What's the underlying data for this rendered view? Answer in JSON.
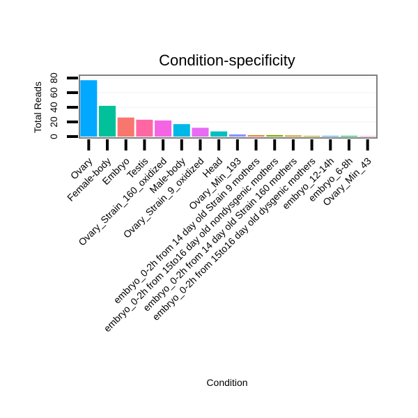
{
  "chart_data": {
    "type": "bar",
    "title": "Condition-specificity",
    "xlabel": "Condition",
    "ylabel": "Total Reads",
    "ylim": [
      0,
      80
    ],
    "yticks": [
      "0",
      "20",
      "40",
      "60",
      "80"
    ],
    "grid": true,
    "legend": "none",
    "categories": [
      "Ovary",
      "Female-body",
      "Embryo",
      "Testis",
      "Ovary_Strain_160_oxidized",
      "Male-body",
      "Ovary_Strain_9_oxidized",
      "Head",
      "Ovary_Min_193",
      "embryo_0-2h from 14 day old Strain 9 mothers",
      "embryo_0-2h from 15to16 day old nondysgenic mothers",
      "embryo_0-2h from 14 day old Strain 160 mothers",
      "embryo_0-2h from 15to16 day old dysgenic mothers",
      "embryo_12-14h",
      "embryo_6-8h",
      "Ovary_Min_43"
    ],
    "values": [
      77,
      42,
      26,
      23,
      22,
      17,
      12,
      7,
      3,
      2,
      2,
      1.5,
      1,
      1,
      1,
      0.5
    ],
    "colors": [
      "#00a9ff",
      "#00c19a",
      "#f8766d",
      "#ff67a4",
      "#f564e3",
      "#00b8e7",
      "#e76bf3",
      "#00bfc4",
      "#8494ff",
      "#ed8141",
      "#7cae00",
      "#cd9600",
      "#abb300",
      "#35a2ff",
      "#00be67",
      "#ff61c3"
    ]
  }
}
